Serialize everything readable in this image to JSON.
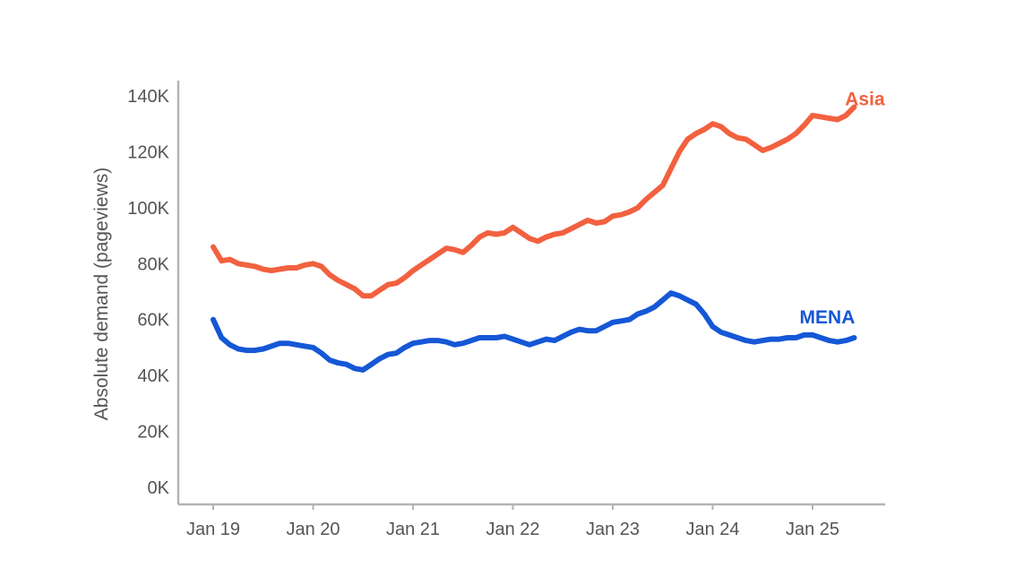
{
  "chart_data": {
    "type": "line",
    "title": "",
    "xlabel": "",
    "ylabel": "Absolute demand (pageviews)",
    "x_ticks": [
      "Jan 19",
      "Jan 20",
      "Jan 21",
      "Jan 22",
      "Jan 23",
      "Jan 24",
      "Jan 25"
    ],
    "y_ticks": [
      "0K",
      "20K",
      "40K",
      "60K",
      "80K",
      "100K",
      "120K",
      "140K"
    ],
    "ylim": [
      0,
      140000
    ],
    "xlim": [
      "2018-12",
      "2025-08"
    ],
    "grid": false,
    "legend": "direct labels at line ends",
    "x": [
      "2019-01",
      "2019-02",
      "2019-03",
      "2019-04",
      "2019-05",
      "2019-06",
      "2019-07",
      "2019-08",
      "2019-09",
      "2019-10",
      "2019-11",
      "2019-12",
      "2020-01",
      "2020-02",
      "2020-03",
      "2020-04",
      "2020-05",
      "2020-06",
      "2020-07",
      "2020-08",
      "2020-09",
      "2020-10",
      "2020-11",
      "2020-12",
      "2021-01",
      "2021-02",
      "2021-03",
      "2021-04",
      "2021-05",
      "2021-06",
      "2021-07",
      "2021-08",
      "2021-09",
      "2021-10",
      "2021-11",
      "2021-12",
      "2022-01",
      "2022-02",
      "2022-03",
      "2022-04",
      "2022-05",
      "2022-06",
      "2022-07",
      "2022-08",
      "2022-09",
      "2022-10",
      "2022-11",
      "2022-12",
      "2023-01",
      "2023-02",
      "2023-03",
      "2023-04",
      "2023-05",
      "2023-06",
      "2023-07",
      "2023-08",
      "2023-09",
      "2023-10",
      "2023-11",
      "2023-12",
      "2024-01",
      "2024-02",
      "2024-03",
      "2024-04",
      "2024-05",
      "2024-06",
      "2024-07",
      "2024-08",
      "2024-09",
      "2024-10",
      "2024-11",
      "2024-12",
      "2025-01",
      "2025-02",
      "2025-03",
      "2025-04",
      "2025-05",
      "2025-06"
    ],
    "series": [
      {
        "name": "Asia",
        "color": "#F2613F",
        "values": [
          86000,
          81000,
          81500,
          80000,
          79500,
          79000,
          78000,
          77500,
          78000,
          78500,
          78500,
          79500,
          80000,
          79000,
          76000,
          74000,
          72500,
          71000,
          68500,
          68500,
          70500,
          72500,
          73000,
          75000,
          77500,
          79500,
          81500,
          83500,
          85500,
          85000,
          84000,
          86500,
          89500,
          91000,
          90500,
          91000,
          93000,
          91000,
          89000,
          88000,
          89500,
          90500,
          91000,
          92500,
          94000,
          95500,
          94500,
          95000,
          97000,
          97500,
          98500,
          100000,
          103000,
          105500,
          108000,
          114000,
          120000,
          124500,
          126500,
          128000,
          130000,
          129000,
          126500,
          125000,
          124500,
          122500,
          120500,
          121500,
          123000,
          124500,
          126500,
          129500,
          133000,
          132500,
          132000,
          131500,
          133000,
          136000
        ]
      },
      {
        "name": "MENA",
        "color": "#1557D6",
        "values": [
          60000,
          53500,
          51000,
          49500,
          49000,
          49000,
          49500,
          50500,
          51500,
          51500,
          51000,
          50500,
          50000,
          48000,
          45500,
          44500,
          44000,
          42500,
          42000,
          44000,
          46000,
          47500,
          48000,
          50000,
          51500,
          52000,
          52500,
          52500,
          52000,
          51000,
          51500,
          52500,
          53500,
          53500,
          53500,
          54000,
          53000,
          52000,
          51000,
          52000,
          53000,
          52500,
          54000,
          55500,
          56500,
          56000,
          56000,
          57500,
          59000,
          59500,
          60000,
          62000,
          63000,
          64500,
          67000,
          69500,
          68500,
          67000,
          65500,
          62000,
          57500,
          55500,
          54500,
          53500,
          52500,
          52000,
          52500,
          53000,
          53000,
          53500,
          53500,
          54500,
          54500,
          53500,
          52500,
          52000,
          52500,
          53500
        ]
      }
    ]
  }
}
